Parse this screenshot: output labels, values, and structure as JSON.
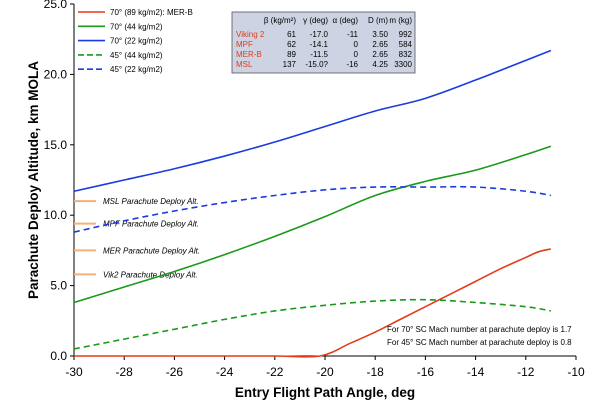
{
  "chart_data": {
    "type": "line",
    "xlabel": "Entry Flight Path Angle, deg",
    "ylabel": "Parachute Deploy Altitude, km MOLA",
    "xlim": [
      -30,
      -10
    ],
    "ylim": [
      0,
      25
    ],
    "x_ticks": [
      "-30",
      "-28",
      "-26",
      "-24",
      "-22",
      "-20",
      "-18",
      "-16",
      "-14",
      "-12",
      "-10"
    ],
    "y_ticks": [
      "0.0",
      "5.0",
      "10.0",
      "15.0",
      "20.0",
      "25.0"
    ],
    "legend_position": "top-left",
    "series": [
      {
        "name": "70° (89 kg/m2): MER-B",
        "color": "#e23b1a",
        "dash": false,
        "x": [
          -30,
          -28,
          -26,
          -24,
          -22,
          -20.2,
          -19,
          -18,
          -17,
          -16,
          -15,
          -14,
          -13,
          -12,
          -11.5,
          -11
        ],
        "y": [
          0,
          0,
          0,
          0,
          0,
          0,
          0.9,
          1.7,
          2.6,
          3.5,
          4.4,
          5.3,
          6.2,
          7.0,
          7.4,
          7.6
        ]
      },
      {
        "name": "70° (44 kg/m2)",
        "color": "#1a9a1a",
        "dash": false,
        "x": [
          -30,
          -28,
          -26,
          -24,
          -22,
          -20,
          -18,
          -16,
          -14,
          -12,
          -11
        ],
        "y": [
          3.8,
          4.9,
          6.0,
          7.2,
          8.5,
          9.9,
          11.4,
          12.4,
          13.2,
          14.3,
          14.9
        ]
      },
      {
        "name": "70° (22 kg/m2)",
        "color": "#1a3be0",
        "dash": false,
        "x": [
          -30,
          -28,
          -26,
          -24,
          -22,
          -20,
          -18,
          -16,
          -14,
          -12,
          -11
        ],
        "y": [
          11.7,
          12.5,
          13.3,
          14.2,
          15.2,
          16.3,
          17.4,
          18.3,
          19.6,
          21.0,
          21.7
        ]
      },
      {
        "name": "45° (44 kg/m2)",
        "color": "#1a9a1a",
        "dash": true,
        "x": [
          -30,
          -28,
          -26,
          -24,
          -22,
          -20,
          -18,
          -16,
          -14,
          -12,
          -11
        ],
        "y": [
          0.5,
          1.2,
          1.9,
          2.6,
          3.2,
          3.6,
          3.9,
          4.0,
          3.8,
          3.5,
          3.2
        ]
      },
      {
        "name": "45° (22 kg/m2)",
        "color": "#1a3be0",
        "dash": true,
        "x": [
          -30,
          -28,
          -26,
          -24,
          -22,
          -20,
          -18,
          -16,
          -14,
          -12,
          -11
        ],
        "y": [
          8.8,
          9.6,
          10.3,
          10.9,
          11.4,
          11.8,
          12.0,
          12.0,
          12.0,
          11.7,
          11.4
        ]
      }
    ],
    "reference_lines": [
      {
        "label": "MSL Parachute Deploy Alt.",
        "y": 11.0,
        "color": "#f3b07a"
      },
      {
        "label": "MPF Parachute Deploy Alt.",
        "y": 9.4,
        "color": "#f3b07a"
      },
      {
        "label": "MER Parachute Deploy Alt.",
        "y": 7.5,
        "color": "#f3b07a"
      },
      {
        "label": "Vik2 Parachute Deploy Alt.",
        "y": 5.8,
        "color": "#f3b07a"
      }
    ],
    "table": {
      "headers": [
        "β (kg/m²)",
        "γ (deg)",
        "α (deg)",
        "D (m)",
        "m (kg)"
      ],
      "rows": [
        {
          "name": "Viking 2",
          "values": [
            "61",
            "-17.0",
            "-11",
            "3.50",
            "992"
          ]
        },
        {
          "name": "MPF",
          "values": [
            "62",
            "-14.1",
            "0",
            "2.65",
            "584"
          ]
        },
        {
          "name": "MER-B",
          "values": [
            "89",
            "-11.5",
            "0",
            "2.65",
            "832"
          ]
        },
        {
          "name": "MSL",
          "values": [
            "137",
            "-15.0?",
            "-16",
            "4.25",
            "3300"
          ]
        }
      ]
    },
    "notes": [
      "For 70° SC Mach number at parachute deploy is 1.7",
      "For 45° SC Mach number at parachute deploy is 0.8"
    ],
    "grid": false
  }
}
